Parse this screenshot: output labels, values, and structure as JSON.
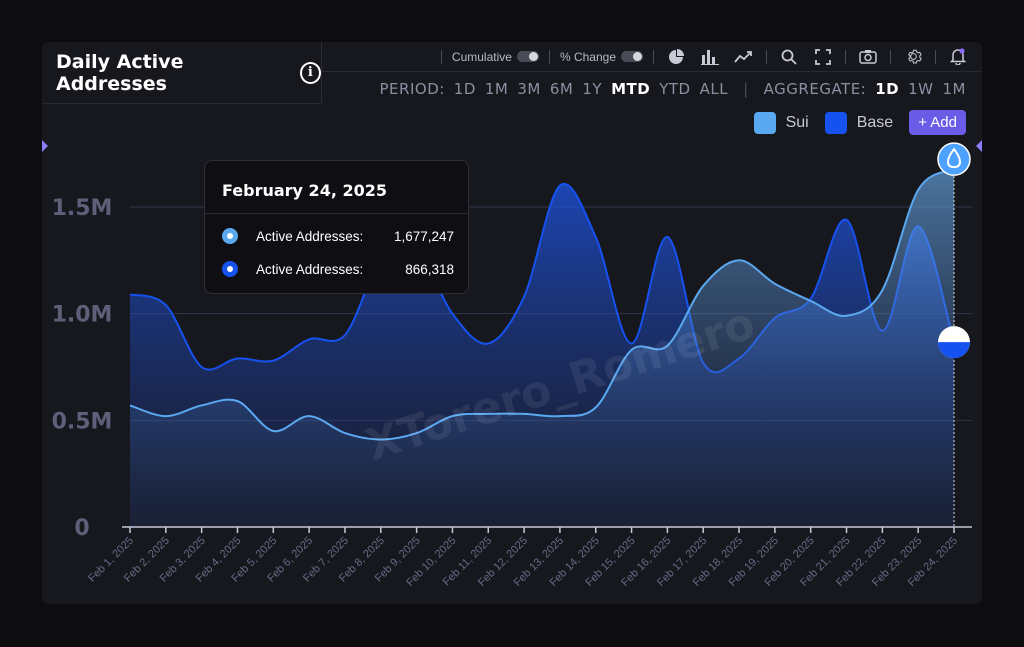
{
  "header": {
    "title": "Daily Active Addresses",
    "info_icon": "info-icon"
  },
  "toolbar": {
    "cumulative_label": "Cumulative",
    "pct_change_label": "% Change",
    "icons": [
      "pie-chart-icon",
      "bar-chart-icon",
      "line-chart-icon",
      "zoom-icon",
      "fullscreen-icon",
      "camera-icon",
      "gear-icon",
      "bell-icon"
    ],
    "period_label": "PERIOD:",
    "periods": [
      "1D",
      "1M",
      "3M",
      "6M",
      "1Y",
      "MTD",
      "YTD",
      "ALL"
    ],
    "period_active": "MTD",
    "aggregate_label": "AGGREGATE:",
    "aggregates": [
      "1D",
      "1W",
      "1M"
    ],
    "aggregate_active": "1D"
  },
  "legend": {
    "items": [
      {
        "label": "Sui",
        "color": "#5aa8f0"
      },
      {
        "label": "Base",
        "color": "#1652f0"
      }
    ],
    "add_label": "+ Add"
  },
  "tooltip": {
    "date": "February 24, 2025",
    "rows": [
      {
        "label": "Active Addresses:",
        "value": "1,677,247",
        "color": "#5aa8f0"
      },
      {
        "label": "Active Addresses:",
        "value": "866,318",
        "color": "#1652f0"
      }
    ]
  },
  "watermark": "XTorero_Romero",
  "chart_data": {
    "type": "area",
    "x": [
      "Feb 1, 2025",
      "Feb 2, 2025",
      "Feb 3, 2025",
      "Feb 4, 2025",
      "Feb 5, 2025",
      "Feb 6, 2025",
      "Feb 7, 2025",
      "Feb 8, 2025",
      "Feb 9, 2025",
      "Feb 10, 2025",
      "Feb 11, 2025",
      "Feb 12, 2025",
      "Feb 13, 2025",
      "Feb 14, 2025",
      "Feb 15, 2025",
      "Feb 16, 2025",
      "Feb 17, 2025",
      "Feb 18, 2025",
      "Feb 19, 2025",
      "Feb 20, 2025",
      "Feb 21, 2025",
      "Feb 22, 2025",
      "Feb 23, 2025",
      "Feb 24, 2025"
    ],
    "series": [
      {
        "name": "Sui",
        "color": "#5aa8f0",
        "values": [
          570000,
          520000,
          570000,
          590000,
          450000,
          520000,
          440000,
          410000,
          440000,
          520000,
          530000,
          530000,
          520000,
          560000,
          830000,
          850000,
          1130000,
          1250000,
          1140000,
          1060000,
          990000,
          1110000,
          1580000,
          1677247
        ]
      },
      {
        "name": "Base",
        "color": "#1652f0",
        "values": [
          1090000,
          1040000,
          750000,
          790000,
          780000,
          880000,
          900000,
          1250000,
          1300000,
          1000000,
          860000,
          1080000,
          1600000,
          1360000,
          860000,
          1360000,
          770000,
          790000,
          980000,
          1070000,
          1440000,
          920000,
          1410000,
          866318
        ]
      }
    ],
    "y_ticks": [
      "0",
      "0.5M",
      "1.0M",
      "1.5M"
    ],
    "ylim": [
      0,
      1750000
    ],
    "grid": true
  }
}
